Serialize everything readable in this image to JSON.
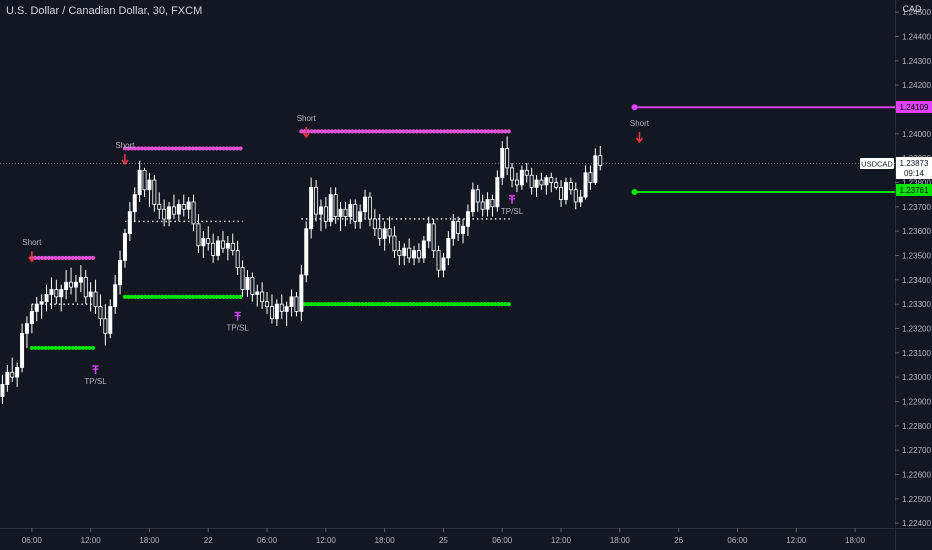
{
  "header": {
    "symbol_title": "U.S. Dollar / Canadian Dollar, 30, FXCM",
    "currency": "CAD"
  },
  "colors": {
    "background": "#131722",
    "candle": "#ffffff",
    "magenta": "#e040fb",
    "pink_dots": "#e351d9",
    "green": "#00e600",
    "arrow_red": "#f23645",
    "axis_text": "#b2b5be",
    "axis_line": "#5d606b"
  },
  "price_badges": {
    "current_symbol": "USDCAD",
    "current_price": "1.23873",
    "countdown": "09:14",
    "upper_level": "1.24109",
    "lower_level": "1.23761"
  },
  "chart_data": {
    "type": "candlestick",
    "interval": "30",
    "ylim": [
      1.2238,
      1.2455
    ],
    "yticks": [
      "1.24500",
      "1.24400",
      "1.24300",
      "1.24200",
      "1.24100",
      "1.24000",
      "1.23900",
      "1.23800",
      "1.23700",
      "1.23600",
      "1.23500",
      "1.23400",
      "1.23300",
      "1.23200",
      "1.23100",
      "1.23000",
      "1.22900",
      "1.22800",
      "1.22700",
      "1.22600",
      "1.22500",
      "1.22400"
    ],
    "xticks": [
      "06:00",
      "12:00",
      "18:00",
      "22",
      "06:00",
      "12:00",
      "18:00",
      "25",
      "06:00",
      "12:00",
      "18:00",
      "26",
      "06:00",
      "12:00",
      "18:00"
    ],
    "x_range_bars": [
      0,
      180
    ],
    "xtick_bars": [
      6,
      18,
      30,
      42,
      54,
      66,
      78,
      90,
      102,
      114,
      126,
      138,
      150,
      162,
      174
    ],
    "current_price": 1.23873,
    "candles": [
      [
        1.2292,
        1.2301,
        1.2289,
        1.2297
      ],
      [
        1.2297,
        1.2305,
        1.2294,
        1.2302
      ],
      [
        1.2302,
        1.2308,
        1.2298,
        1.23
      ],
      [
        1.23,
        1.2306,
        1.2296,
        1.2304
      ],
      [
        1.2304,
        1.2322,
        1.2302,
        1.2318
      ],
      [
        1.2318,
        1.2325,
        1.2312,
        1.2322
      ],
      [
        1.2322,
        1.233,
        1.2318,
        1.2327
      ],
      [
        1.2327,
        1.2333,
        1.2323,
        1.233
      ],
      [
        1.233,
        1.2334,
        1.2324,
        1.2331
      ],
      [
        1.2331,
        1.2338,
        1.2327,
        1.2334
      ],
      [
        1.2334,
        1.2341,
        1.2328,
        1.2336
      ],
      [
        1.2336,
        1.234,
        1.233,
        1.2333
      ],
      [
        1.2333,
        1.2338,
        1.2327,
        1.2336
      ],
      [
        1.2336,
        1.2344,
        1.2332,
        1.2339
      ],
      [
        1.2339,
        1.2345,
        1.2334,
        1.2337
      ],
      [
        1.2337,
        1.2342,
        1.2331,
        1.2339
      ],
      [
        1.2339,
        1.2346,
        1.2335,
        1.2341
      ],
      [
        1.2341,
        1.2344,
        1.233,
        1.2333
      ],
      [
        1.2333,
        1.2339,
        1.2327,
        1.2335
      ],
      [
        1.2335,
        1.234,
        1.2326,
        1.2329
      ],
      [
        1.2329,
        1.2334,
        1.2321,
        1.2324
      ],
      [
        1.2324,
        1.233,
        1.2313,
        1.2318
      ],
      [
        1.2318,
        1.2332,
        1.2316,
        1.2329
      ],
      [
        1.2329,
        1.2342,
        1.2326,
        1.2338
      ],
      [
        1.2338,
        1.2352,
        1.2334,
        1.2348
      ],
      [
        1.2348,
        1.2361,
        1.2345,
        1.2359
      ],
      [
        1.2359,
        1.2372,
        1.2356,
        1.2368
      ],
      [
        1.2368,
        1.2378,
        1.2364,
        1.2375
      ],
      [
        1.2375,
        1.2389,
        1.2372,
        1.2385
      ],
      [
        1.2385,
        1.2386,
        1.2374,
        1.2377
      ],
      [
        1.2377,
        1.2384,
        1.237,
        1.2381
      ],
      [
        1.2381,
        1.2383,
        1.2368,
        1.2371
      ],
      [
        1.2371,
        1.2376,
        1.2365,
        1.2369
      ],
      [
        1.2369,
        1.2373,
        1.2362,
        1.2365
      ],
      [
        1.2365,
        1.2372,
        1.2362,
        1.237
      ],
      [
        1.237,
        1.2375,
        1.2365,
        1.2367
      ],
      [
        1.2367,
        1.2373,
        1.2364,
        1.2371
      ],
      [
        1.2371,
        1.2375,
        1.2366,
        1.2369
      ],
      [
        1.2369,
        1.2374,
        1.2365,
        1.2372
      ],
      [
        1.2372,
        1.2375,
        1.236,
        1.2363
      ],
      [
        1.2363,
        1.2367,
        1.2351,
        1.2354
      ],
      [
        1.2354,
        1.236,
        1.2349,
        1.2357
      ],
      [
        1.2357,
        1.2362,
        1.2352,
        1.2355
      ],
      [
        1.2355,
        1.2359,
        1.2347,
        1.235
      ],
      [
        1.235,
        1.2358,
        1.2348,
        1.2356
      ],
      [
        1.2356,
        1.236,
        1.2351,
        1.2353
      ],
      [
        1.2353,
        1.2358,
        1.2348,
        1.2355
      ],
      [
        1.2355,
        1.2359,
        1.235,
        1.2352
      ],
      [
        1.2352,
        1.2356,
        1.2342,
        1.2345
      ],
      [
        1.2345,
        1.2348,
        1.2333,
        1.2336
      ],
      [
        1.2336,
        1.2344,
        1.2333,
        1.2341
      ],
      [
        1.2341,
        1.2343,
        1.2331,
        1.2334
      ],
      [
        1.2334,
        1.2338,
        1.2329,
        1.2335
      ],
      [
        1.2335,
        1.2339,
        1.2328,
        1.2331
      ],
      [
        1.2331,
        1.2335,
        1.2326,
        1.2329
      ],
      [
        1.2329,
        1.2334,
        1.2322,
        1.2324
      ],
      [
        1.2324,
        1.2332,
        1.2321,
        1.233
      ],
      [
        1.233,
        1.2334,
        1.2324,
        1.2327
      ],
      [
        1.2327,
        1.2331,
        1.2321,
        1.2329
      ],
      [
        1.2329,
        1.2336,
        1.2325,
        1.2333
      ],
      [
        1.2333,
        1.2335,
        1.2325,
        1.2327
      ],
      [
        1.2327,
        1.2346,
        1.2323,
        1.2342
      ],
      [
        1.2342,
        1.2364,
        1.2339,
        1.2361
      ],
      [
        1.2361,
        1.2382,
        1.2357,
        1.2378
      ],
      [
        1.2378,
        1.2381,
        1.2364,
        1.2367
      ],
      [
        1.2367,
        1.2373,
        1.236,
        1.237
      ],
      [
        1.237,
        1.2374,
        1.2361,
        1.2364
      ],
      [
        1.2364,
        1.2378,
        1.2362,
        1.2375
      ],
      [
        1.2375,
        1.2378,
        1.2363,
        1.2366
      ],
      [
        1.2366,
        1.2372,
        1.236,
        1.2369
      ],
      [
        1.2369,
        1.2372,
        1.2362,
        1.2366
      ],
      [
        1.2366,
        1.2373,
        1.2363,
        1.2371
      ],
      [
        1.2371,
        1.2373,
        1.2361,
        1.2364
      ],
      [
        1.2364,
        1.2371,
        1.2361,
        1.2368
      ],
      [
        1.2368,
        1.2377,
        1.2365,
        1.2374
      ],
      [
        1.2374,
        1.2376,
        1.2362,
        1.2365
      ],
      [
        1.2365,
        1.2369,
        1.2358,
        1.2361
      ],
      [
        1.2361,
        1.2367,
        1.2354,
        1.2357
      ],
      [
        1.2357,
        1.2364,
        1.2352,
        1.2361
      ],
      [
        1.2361,
        1.2366,
        1.2355,
        1.2358
      ],
      [
        1.2358,
        1.2362,
        1.2349,
        1.2352
      ],
      [
        1.2352,
        1.2356,
        1.2346,
        1.235
      ],
      [
        1.235,
        1.2355,
        1.2346,
        1.2353
      ],
      [
        1.2353,
        1.2357,
        1.2347,
        1.2349
      ],
      [
        1.2349,
        1.2354,
        1.2346,
        1.2352
      ],
      [
        1.2352,
        1.2355,
        1.2347,
        1.2349
      ],
      [
        1.2349,
        1.2358,
        1.2347,
        1.2356
      ],
      [
        1.2356,
        1.2366,
        1.2353,
        1.2363
      ],
      [
        1.2363,
        1.2365,
        1.2349,
        1.2352
      ],
      [
        1.2352,
        1.2354,
        1.2341,
        1.2344
      ],
      [
        1.2344,
        1.2351,
        1.2341,
        1.2349
      ],
      [
        1.2349,
        1.236,
        1.2346,
        1.2357
      ],
      [
        1.2357,
        1.2367,
        1.2354,
        1.2364
      ],
      [
        1.2364,
        1.2366,
        1.2356,
        1.2359
      ],
      [
        1.2359,
        1.2365,
        1.2355,
        1.2362
      ],
      [
        1.2362,
        1.2371,
        1.2358,
        1.2368
      ],
      [
        1.2368,
        1.238,
        1.2366,
        1.2377
      ],
      [
        1.2377,
        1.2379,
        1.2368,
        1.2372
      ],
      [
        1.2372,
        1.2375,
        1.2366,
        1.2369
      ],
      [
        1.2369,
        1.2376,
        1.2366,
        1.2373
      ],
      [
        1.2373,
        1.2375,
        1.2366,
        1.237
      ],
      [
        1.237,
        1.2385,
        1.2368,
        1.2382
      ],
      [
        1.2382,
        1.2397,
        1.2379,
        1.2394
      ],
      [
        1.2394,
        1.2399,
        1.2383,
        1.2386
      ],
      [
        1.2386,
        1.2388,
        1.2378,
        1.2381
      ],
      [
        1.2381,
        1.2384,
        1.2376,
        1.2379
      ],
      [
        1.2379,
        1.2387,
        1.2377,
        1.2385
      ],
      [
        1.2385,
        1.2388,
        1.238,
        1.2383
      ],
      [
        1.2383,
        1.2386,
        1.2375,
        1.2378
      ],
      [
        1.2378,
        1.2383,
        1.2374,
        1.2381
      ],
      [
        1.2381,
        1.2384,
        1.2377,
        1.2379
      ],
      [
        1.2379,
        1.2383,
        1.2375,
        1.2382
      ],
      [
        1.2382,
        1.2384,
        1.2376,
        1.238
      ],
      [
        1.238,
        1.2382,
        1.2377,
        1.2378
      ],
      [
        1.2378,
        1.2381,
        1.237,
        1.2373
      ],
      [
        1.2373,
        1.2382,
        1.2371,
        1.238
      ],
      [
        1.238,
        1.2382,
        1.2375,
        1.2377
      ],
      [
        1.2377,
        1.238,
        1.2369,
        1.2372
      ],
      [
        1.2372,
        1.2377,
        1.237,
        1.2374
      ],
      [
        1.2374,
        1.2387,
        1.2373,
        1.2384
      ],
      [
        1.2384,
        1.2387,
        1.2377,
        1.238
      ],
      [
        1.238,
        1.2394,
        1.2379,
        1.2391
      ],
      [
        1.2391,
        1.2395,
        1.2385,
        1.2387
      ]
    ],
    "levels": [
      {
        "color": "magenta_dots",
        "style": "dots",
        "price": 1.2349,
        "from_bar": 6,
        "to_bar": 19
      },
      {
        "color": "green_dots",
        "style": "dots",
        "price": 1.2312,
        "from_bar": 6,
        "to_bar": 19
      },
      {
        "color": "white_dots",
        "style": "dotted",
        "price": 1.233,
        "from_bar": 6,
        "to_bar": 19
      },
      {
        "color": "magenta_dots",
        "style": "dots",
        "price": 1.2394,
        "from_bar": 25,
        "to_bar": 49
      },
      {
        "color": "green_dots",
        "style": "dots",
        "price": 1.2333,
        "from_bar": 25,
        "to_bar": 49
      },
      {
        "color": "white_dots",
        "style": "dotted",
        "price": 1.2364,
        "from_bar": 25,
        "to_bar": 49
      },
      {
        "color": "magenta_dots",
        "style": "dots",
        "price": 1.2401,
        "from_bar": 61,
        "to_bar": 104
      },
      {
        "color": "green_dots",
        "style": "dots",
        "price": 1.233,
        "from_bar": 61,
        "to_bar": 104
      },
      {
        "color": "white_dots",
        "style": "dotted",
        "price": 1.2365,
        "from_bar": 61,
        "to_bar": 104
      },
      {
        "color": "magenta_line",
        "style": "solid",
        "price": 1.24109,
        "from_bar": 129,
        "to_bar": 152
      },
      {
        "color": "green_line",
        "style": "solid",
        "price": 1.23761,
        "from_bar": 129,
        "to_bar": 152
      }
    ],
    "signals": [
      {
        "label": "Short",
        "bar": 6,
        "price": 1.2346,
        "type": "short"
      },
      {
        "label": "Short",
        "bar": 25,
        "price": 1.2386,
        "type": "short"
      },
      {
        "label": "Short",
        "bar": 62,
        "price": 1.2397,
        "type": "short"
      },
      {
        "label": "Short",
        "bar": 130,
        "price": 1.2395,
        "type": "short"
      },
      {
        "label": "TP/SL",
        "bar": 19,
        "price": 1.2307,
        "type": "tpsl"
      },
      {
        "label": "TP/SL",
        "bar": 48,
        "price": 1.2329,
        "type": "tpsl"
      },
      {
        "label": "TP/SL",
        "bar": 104,
        "price": 1.2377,
        "type": "tpsl"
      }
    ]
  }
}
